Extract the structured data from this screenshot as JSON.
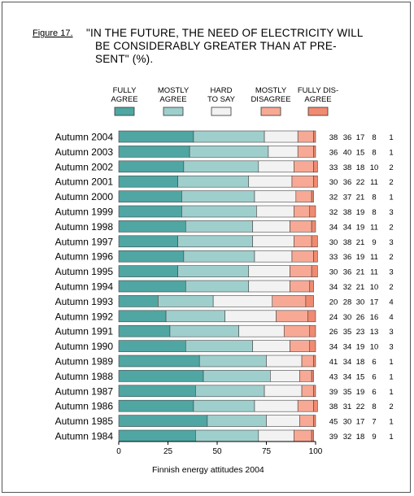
{
  "figure_label": "Figure 17.",
  "title_lines": [
    "\"IN THE FUTURE, THE NEED OF ELECTRICITY WILL",
    "BE CONSIDERABLY GREATER THAN AT  PRE-",
    "SENT\" (%)."
  ],
  "footer": "Finnish energy attitudes 2004",
  "colors": {
    "fully_agree": "#4fa6a3",
    "mostly_agree": "#9fcfcc",
    "hard_to_say": "#f2f2f2",
    "mostly_disagree": "#f7a995",
    "fully_disagree": "#f08a70"
  },
  "chart_data": {
    "type": "bar",
    "orientation": "horizontal",
    "stacked": true,
    "xlim": [
      0,
      100
    ],
    "xticks": [
      "0",
      "25",
      "50",
      "75",
      "100"
    ],
    "grid": false,
    "legend_position": "top",
    "categories": [
      "Autumn 2004",
      "Autumn 2003",
      "Autumn 2002",
      "Autumn 2001",
      "Autumn 2000",
      "Autumn 1999",
      "Autumn 1998",
      "Autumn 1997",
      "Autumn 1996",
      "Autumn 1995",
      "Autumn 1994",
      "Autumn 1993",
      "Autumn 1992",
      "Autumn 1991",
      "Autumn 1990",
      "Autumn 1989",
      "Autumn 1988",
      "Autumn 1987",
      "Autumn 1986",
      "Autumn 1985",
      "Autumn 1984"
    ],
    "series": [
      {
        "name": "FULLY AGREE",
        "legend_lines": [
          "FULLY",
          "AGREE"
        ],
        "color_key": "fully_agree",
        "values": [
          38,
          36,
          33,
          30,
          32,
          32,
          34,
          30,
          33,
          30,
          34,
          20,
          24,
          26,
          34,
          41,
          43,
          39,
          38,
          45,
          39
        ]
      },
      {
        "name": "MOSTLY AGREE",
        "legend_lines": [
          "MOSTLY",
          "AGREE"
        ],
        "color_key": "mostly_agree",
        "values": [
          36,
          40,
          38,
          36,
          37,
          38,
          34,
          38,
          36,
          36,
          32,
          28,
          30,
          35,
          34,
          34,
          34,
          35,
          31,
          30,
          32
        ]
      },
      {
        "name": "HARD TO SAY",
        "legend_lines": [
          "HARD",
          "TO SAY"
        ],
        "color_key": "hard_to_say",
        "values": [
          17,
          15,
          18,
          22,
          21,
          19,
          19,
          21,
          19,
          21,
          21,
          30,
          26,
          23,
          19,
          18,
          15,
          19,
          22,
          17,
          18
        ]
      },
      {
        "name": "MOSTLY DISAGREE",
        "legend_lines": [
          "MOSTLY",
          "DISAGREE"
        ],
        "color_key": "mostly_disagree",
        "values": [
          8,
          8,
          10,
          11,
          8,
          8,
          11,
          9,
          11,
          11,
          10,
          17,
          16,
          13,
          10,
          6,
          6,
          6,
          8,
          7,
          9
        ]
      },
      {
        "name": "FULLY DISAGREE",
        "legend_lines": [
          "FULLY DIS-",
          "AGREE"
        ],
        "color_key": "fully_disagree",
        "values": [
          1,
          1,
          2,
          2,
          1,
          3,
          2,
          3,
          2,
          3,
          2,
          4,
          4,
          3,
          3,
          1,
          1,
          1,
          2,
          1,
          1
        ]
      }
    ]
  }
}
